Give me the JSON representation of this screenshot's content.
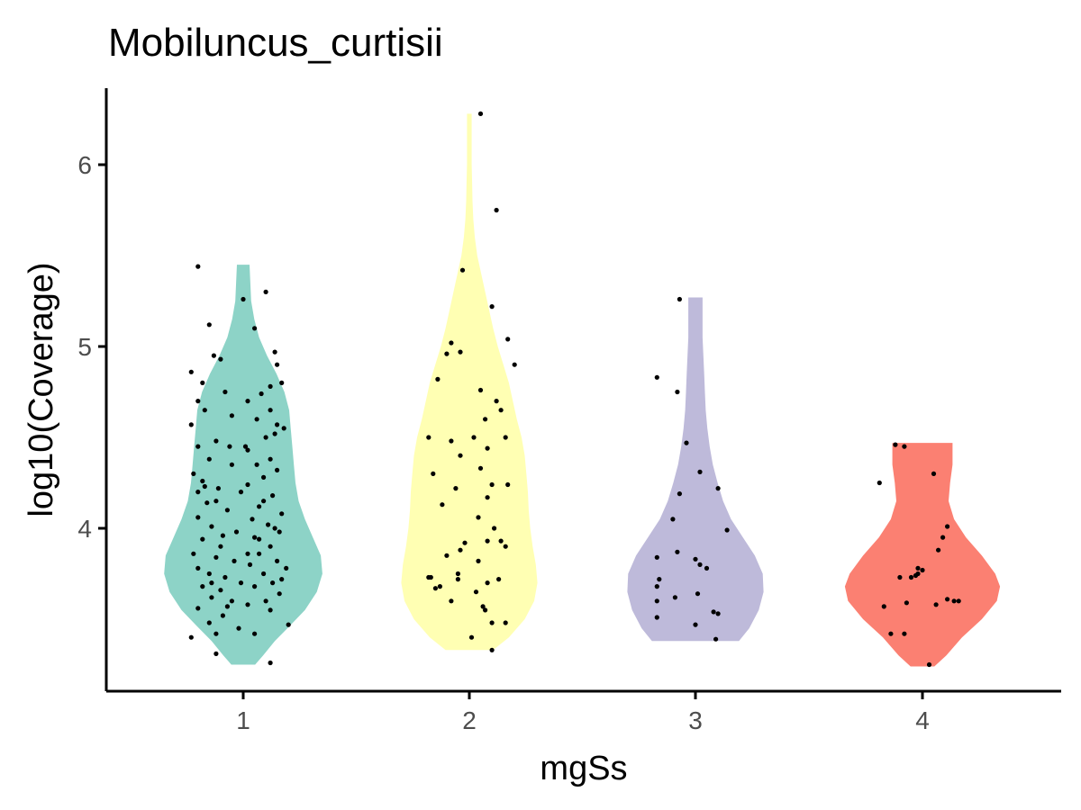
{
  "chart_data": {
    "type": "violin",
    "title": "Mobiluncus_curtisii",
    "xlabel": "mgSs",
    "ylabel": "log10(Coverage)",
    "categories": [
      "1",
      "2",
      "3",
      "4"
    ],
    "y_ticks": [
      "4",
      "5",
      "6"
    ],
    "y_tick_values": [
      4,
      5,
      6
    ],
    "ylim": [
      3.1,
      6.4
    ],
    "grid": false,
    "legend": "none",
    "series": [
      {
        "category": "1",
        "color": "#8DD3C7",
        "profile": [
          [
            3.25,
            0.15
          ],
          [
            3.3,
            0.25
          ],
          [
            3.38,
            0.4
          ],
          [
            3.46,
            0.58
          ],
          [
            3.55,
            0.78
          ],
          [
            3.65,
            0.93
          ],
          [
            3.75,
            1.0
          ],
          [
            3.85,
            0.98
          ],
          [
            3.95,
            0.88
          ],
          [
            4.05,
            0.78
          ],
          [
            4.15,
            0.7
          ],
          [
            4.25,
            0.66
          ],
          [
            4.35,
            0.64
          ],
          [
            4.45,
            0.62
          ],
          [
            4.55,
            0.6
          ],
          [
            4.65,
            0.58
          ],
          [
            4.75,
            0.52
          ],
          [
            4.85,
            0.42
          ],
          [
            4.95,
            0.3
          ],
          [
            5.05,
            0.2
          ],
          [
            5.15,
            0.14
          ],
          [
            5.25,
            0.1
          ],
          [
            5.35,
            0.09
          ],
          [
            5.45,
            0.08
          ]
        ],
        "points": [
          [
            -0.2,
            5.44
          ],
          [
            -0.15,
            5.12
          ],
          [
            -0.13,
            4.95
          ],
          [
            -0.1,
            4.93
          ],
          [
            -0.23,
            4.86
          ],
          [
            -0.18,
            4.8
          ],
          [
            -0.08,
            4.75
          ],
          [
            -0.2,
            4.7
          ],
          [
            -0.17,
            4.65
          ],
          [
            -0.05,
            4.62
          ],
          [
            -0.23,
            4.57
          ],
          [
            -0.12,
            4.48
          ],
          [
            -0.2,
            4.45
          ],
          [
            -0.06,
            4.45
          ],
          [
            -0.15,
            4.38
          ],
          [
            -0.22,
            4.3
          ],
          [
            -0.18,
            4.26
          ],
          [
            -0.11,
            4.22
          ],
          [
            -0.01,
            4.2
          ],
          [
            -0.16,
            4.14
          ],
          [
            -0.07,
            4.1
          ],
          [
            -0.2,
            4.06
          ],
          [
            -0.14,
            4.01
          ],
          [
            -0.03,
            3.98
          ],
          [
            -0.18,
            3.94
          ],
          [
            -0.1,
            3.9
          ],
          [
            -0.22,
            3.86
          ],
          [
            -0.12,
            3.84
          ],
          [
            -0.04,
            3.82
          ],
          [
            -0.2,
            3.78
          ],
          [
            -0.15,
            3.75
          ],
          [
            -0.08,
            3.73
          ],
          [
            -0.01,
            3.7
          ],
          [
            -0.18,
            3.68
          ],
          [
            -0.1,
            3.66
          ],
          [
            -0.14,
            3.62
          ],
          [
            -0.05,
            3.6
          ],
          [
            -0.2,
            3.56
          ],
          [
            -0.09,
            3.52
          ],
          [
            -0.15,
            3.48
          ],
          [
            -0.02,
            3.45
          ],
          [
            -0.12,
            3.42
          ],
          [
            -0.23,
            3.4
          ],
          [
            -0.12,
            3.31
          ],
          [
            0.1,
            5.3
          ],
          [
            0.0,
            5.26
          ],
          [
            0.05,
            5.1
          ],
          [
            0.14,
            4.97
          ],
          [
            0.15,
            4.9
          ],
          [
            0.17,
            4.8
          ],
          [
            0.12,
            4.78
          ],
          [
            0.08,
            4.74
          ],
          [
            0.02,
            4.7
          ],
          [
            0.12,
            4.65
          ],
          [
            0.06,
            4.6
          ],
          [
            0.15,
            4.57
          ],
          [
            0.18,
            4.55
          ],
          [
            0.14,
            4.52
          ],
          [
            0.1,
            4.5
          ],
          [
            0.02,
            4.43
          ],
          [
            0.12,
            4.38
          ],
          [
            0.06,
            4.35
          ],
          [
            0.15,
            4.32
          ],
          [
            0.09,
            4.28
          ],
          [
            0.02,
            4.24
          ],
          [
            0.13,
            4.18
          ],
          [
            0.07,
            4.12
          ],
          [
            0.17,
            4.08
          ],
          [
            0.04,
            4.05
          ],
          [
            0.11,
            4.02
          ],
          [
            0.16,
            3.98
          ],
          [
            0.07,
            3.94
          ],
          [
            0.12,
            3.9
          ],
          [
            0.02,
            3.86
          ],
          [
            0.15,
            3.82
          ],
          [
            0.19,
            3.78
          ],
          [
            0.09,
            3.75
          ],
          [
            0.13,
            3.7
          ],
          [
            0.05,
            3.68
          ],
          [
            0.16,
            3.64
          ],
          [
            0.1,
            3.6
          ],
          [
            0.02,
            3.58
          ],
          [
            0.12,
            3.55
          ],
          [
            0.2,
            3.47
          ],
          [
            0.05,
            3.42
          ],
          [
            0.12,
            3.26
          ],
          [
            -0.17,
            4.23
          ],
          [
            -0.12,
            4.15
          ],
          [
            -0.05,
            4.35
          ],
          [
            0.03,
            3.8
          ],
          [
            -0.09,
            3.96
          ],
          [
            0.09,
            4.15
          ],
          [
            0.01,
            4.45
          ],
          [
            -0.14,
            3.7
          ],
          [
            0.07,
            3.86
          ],
          [
            0.17,
            3.72
          ],
          [
            -0.2,
            4.2
          ],
          [
            0.14,
            4.0
          ],
          [
            -0.07,
            3.57
          ],
          [
            0.05,
            3.95
          ]
        ]
      },
      {
        "category": "2",
        "color": "#FFFFB3",
        "profile": [
          [
            3.33,
            0.3
          ],
          [
            3.4,
            0.5
          ],
          [
            3.5,
            0.7
          ],
          [
            3.6,
            0.82
          ],
          [
            3.7,
            0.86
          ],
          [
            3.8,
            0.84
          ],
          [
            3.9,
            0.8
          ],
          [
            4.0,
            0.77
          ],
          [
            4.1,
            0.75
          ],
          [
            4.2,
            0.74
          ],
          [
            4.3,
            0.72
          ],
          [
            4.4,
            0.7
          ],
          [
            4.5,
            0.66
          ],
          [
            4.6,
            0.6
          ],
          [
            4.7,
            0.55
          ],
          [
            4.8,
            0.5
          ],
          [
            4.9,
            0.43
          ],
          [
            5.0,
            0.36
          ],
          [
            5.1,
            0.3
          ],
          [
            5.2,
            0.25
          ],
          [
            5.3,
            0.2
          ],
          [
            5.4,
            0.15
          ],
          [
            5.5,
            0.1
          ],
          [
            5.6,
            0.07
          ],
          [
            5.7,
            0.05
          ],
          [
            5.8,
            0.04
          ],
          [
            5.9,
            0.035
          ],
          [
            6.0,
            0.03
          ],
          [
            6.1,
            0.03
          ],
          [
            6.2,
            0.03
          ],
          [
            6.28,
            0.03
          ]
        ],
        "points": [
          [
            0.05,
            6.28
          ],
          [
            0.12,
            5.75
          ],
          [
            -0.03,
            5.42
          ],
          [
            0.1,
            5.22
          ],
          [
            -0.08,
            5.02
          ],
          [
            -0.04,
            4.97
          ],
          [
            0.17,
            5.04
          ],
          [
            0.2,
            4.9
          ],
          [
            -0.14,
            4.82
          ],
          [
            0.05,
            4.76
          ],
          [
            0.12,
            4.7
          ],
          [
            0.07,
            4.6
          ],
          [
            -0.18,
            4.5
          ],
          [
            0.16,
            4.5
          ],
          [
            -0.08,
            4.48
          ],
          [
            0.08,
            4.44
          ],
          [
            -0.04,
            4.4
          ],
          [
            -0.16,
            4.3
          ],
          [
            0.05,
            4.33
          ],
          [
            0.1,
            4.24
          ],
          [
            0.17,
            4.24
          ],
          [
            -0.06,
            4.22
          ],
          [
            0.08,
            4.17
          ],
          [
            -0.12,
            4.13
          ],
          [
            0.04,
            4.06
          ],
          [
            0.14,
            3.93
          ],
          [
            0.08,
            3.93
          ],
          [
            -0.02,
            3.92
          ],
          [
            0.16,
            3.9
          ],
          [
            -0.1,
            3.85
          ],
          [
            0.04,
            3.82
          ],
          [
            -0.05,
            3.75
          ],
          [
            0.13,
            3.72
          ],
          [
            -0.18,
            3.73
          ],
          [
            0.08,
            3.7
          ],
          [
            -0.13,
            3.68
          ],
          [
            0.03,
            3.65
          ],
          [
            -0.08,
            3.6
          ],
          [
            0.07,
            3.55
          ],
          [
            -0.17,
            3.73
          ],
          [
            0.16,
            3.48
          ],
          [
            0.1,
            3.48
          ],
          [
            0.01,
            3.4
          ],
          [
            0.1,
            3.33
          ],
          [
            -0.05,
            3.72
          ],
          [
            0.06,
            3.57
          ],
          [
            -0.15,
            3.67
          ],
          [
            0.11,
            4.0
          ],
          [
            -0.04,
            3.88
          ],
          [
            0.02,
            4.5
          ],
          [
            0.14,
            4.65
          ],
          [
            -0.1,
            4.96
          ]
        ]
      },
      {
        "category": "3",
        "color": "#BEBADA",
        "profile": [
          [
            3.38,
            0.55
          ],
          [
            3.45,
            0.68
          ],
          [
            3.55,
            0.8
          ],
          [
            3.65,
            0.86
          ],
          [
            3.75,
            0.85
          ],
          [
            3.85,
            0.75
          ],
          [
            3.95,
            0.6
          ],
          [
            4.05,
            0.45
          ],
          [
            4.15,
            0.35
          ],
          [
            4.25,
            0.28
          ],
          [
            4.35,
            0.22
          ],
          [
            4.45,
            0.18
          ],
          [
            4.55,
            0.15
          ],
          [
            4.65,
            0.13
          ],
          [
            4.75,
            0.12
          ],
          [
            4.85,
            0.11
          ],
          [
            4.95,
            0.1
          ],
          [
            5.05,
            0.09
          ],
          [
            5.15,
            0.09
          ],
          [
            5.27,
            0.09
          ]
        ],
        "points": [
          [
            -0.07,
            5.26
          ],
          [
            -0.08,
            4.75
          ],
          [
            -0.17,
            4.83
          ],
          [
            -0.04,
            4.47
          ],
          [
            0.02,
            4.31
          ],
          [
            0.1,
            4.22
          ],
          [
            -0.07,
            4.19
          ],
          [
            -0.1,
            4.05
          ],
          [
            0.14,
            3.99
          ],
          [
            -0.08,
            3.87
          ],
          [
            -0.17,
            3.84
          ],
          [
            0.0,
            3.83
          ],
          [
            0.02,
            3.8
          ],
          [
            0.05,
            3.78
          ],
          [
            -0.16,
            3.72
          ],
          [
            -0.17,
            3.68
          ],
          [
            0.01,
            3.64
          ],
          [
            -0.09,
            3.62
          ],
          [
            -0.17,
            3.6
          ],
          [
            0.08,
            3.54
          ],
          [
            0.1,
            3.53
          ],
          [
            -0.17,
            3.51
          ],
          [
            0.0,
            3.47
          ],
          [
            0.09,
            3.39
          ]
        ]
      },
      {
        "category": "4",
        "color": "#FB8072",
        "profile": [
          [
            3.24,
            0.15
          ],
          [
            3.3,
            0.3
          ],
          [
            3.4,
            0.5
          ],
          [
            3.5,
            0.75
          ],
          [
            3.6,
            0.94
          ],
          [
            3.68,
            0.98
          ],
          [
            3.75,
            0.92
          ],
          [
            3.85,
            0.75
          ],
          [
            3.95,
            0.55
          ],
          [
            4.05,
            0.4
          ],
          [
            4.15,
            0.33
          ],
          [
            4.25,
            0.35
          ],
          [
            4.35,
            0.38
          ],
          [
            4.47,
            0.38
          ]
        ],
        "points": [
          [
            -0.12,
            4.46
          ],
          [
            -0.08,
            4.45
          ],
          [
            0.05,
            4.3
          ],
          [
            -0.19,
            4.25
          ],
          [
            0.11,
            4.01
          ],
          [
            0.09,
            3.95
          ],
          [
            0.07,
            3.88
          ],
          [
            -0.02,
            3.78
          ],
          [
            0.0,
            3.77
          ],
          [
            -0.1,
            3.73
          ],
          [
            -0.05,
            3.73
          ],
          [
            -0.03,
            3.74
          ],
          [
            0.11,
            3.61
          ],
          [
            0.14,
            3.6
          ],
          [
            0.06,
            3.58
          ],
          [
            -0.07,
            3.59
          ],
          [
            -0.17,
            3.57
          ],
          [
            -0.02,
            3.75
          ],
          [
            -0.14,
            3.42
          ],
          [
            -0.08,
            3.42
          ],
          [
            0.03,
            3.25
          ],
          [
            0.16,
            3.6
          ]
        ]
      }
    ],
    "point_color": "#000000"
  }
}
